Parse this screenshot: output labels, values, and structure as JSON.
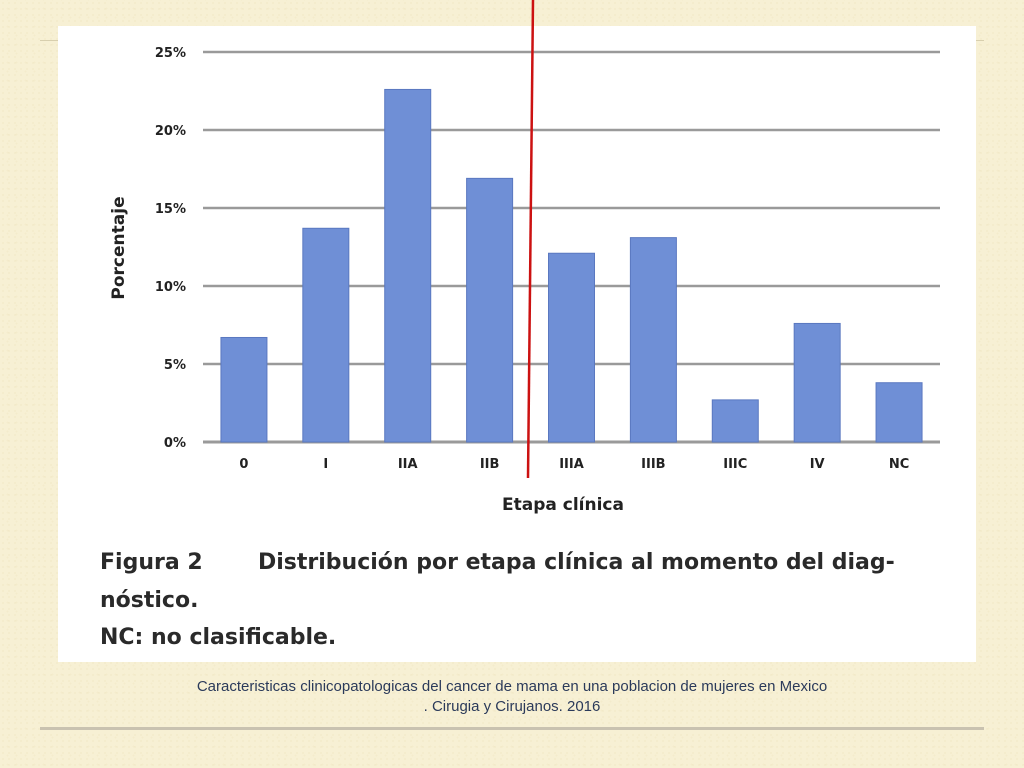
{
  "chart_data": {
    "type": "bar",
    "categories": [
      "0",
      "I",
      "IIA",
      "IIB",
      "IIIA",
      "IIIB",
      "IIIC",
      "IV",
      "NC"
    ],
    "values": [
      6.7,
      13.7,
      22.6,
      16.9,
      12.1,
      13.1,
      2.7,
      7.6,
      3.8
    ],
    "xlabel": "Etapa clínica",
    "ylabel": "Porcentaje",
    "ylim": [
      0,
      25
    ],
    "yticks": [
      {
        "value": 0,
        "label": "0%"
      },
      {
        "value": 5,
        "label": "5%"
      },
      {
        "value": 10,
        "label": "10%"
      },
      {
        "value": 15,
        "label": "15%"
      },
      {
        "value": 20,
        "label": "20%"
      },
      {
        "value": 25,
        "label": "25%"
      }
    ],
    "grid": true,
    "bar_color": "#6f8fd6",
    "grid_color": "#9a9a9a"
  },
  "figure": {
    "label": "Figura 2",
    "line1": "Distribución por etapa clínica al momento del diag-",
    "line2": "nóstico.",
    "line3": "NC: no clasificable."
  },
  "caption": {
    "line1": "Caracteristicas clinicopatologicas del cancer de mama en una poblacion de mujeres en Mexico",
    "line2": ". Cirugia y Cirujanos. 2016"
  },
  "colors": {
    "background": "#f7f0d4",
    "marker_line": "#cc1111"
  }
}
